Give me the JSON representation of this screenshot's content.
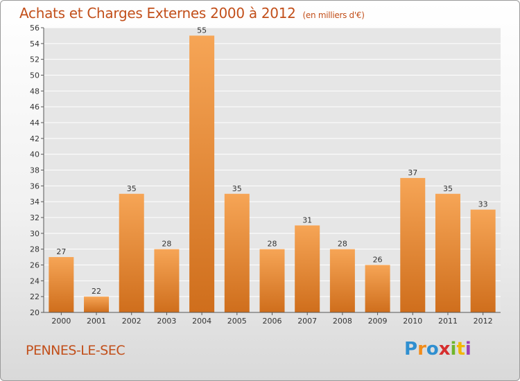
{
  "header": {
    "title": "Achats et Charges Externes 2000 à 2012",
    "subtitle": "(en milliers d'€)"
  },
  "footer": {
    "commune": "PENNES-LE-SEC",
    "logo": {
      "text": "Proxiti",
      "letter_colors": [
        "#2f8fd0",
        "#f28c1a",
        "#2f8fd0",
        "#d62e2e",
        "#6fb52c",
        "#f2b705",
        "#9b3fb5"
      ]
    }
  },
  "chart_data": {
    "type": "bar",
    "categories": [
      "2000",
      "2001",
      "2002",
      "2003",
      "2004",
      "2005",
      "2006",
      "2007",
      "2008",
      "2009",
      "2010",
      "2011",
      "2012"
    ],
    "values": [
      27,
      22,
      35,
      28,
      55,
      35,
      28,
      31,
      28,
      26,
      37,
      35,
      33
    ],
    "ylim": [
      20,
      56
    ],
    "yticks": [
      20,
      22,
      24,
      26,
      28,
      30,
      32,
      34,
      36,
      38,
      40,
      42,
      44,
      46,
      48,
      50,
      52,
      54,
      56
    ],
    "grid": true,
    "bar_color": "#f0963f",
    "plot_background": "#e6e6e6"
  }
}
